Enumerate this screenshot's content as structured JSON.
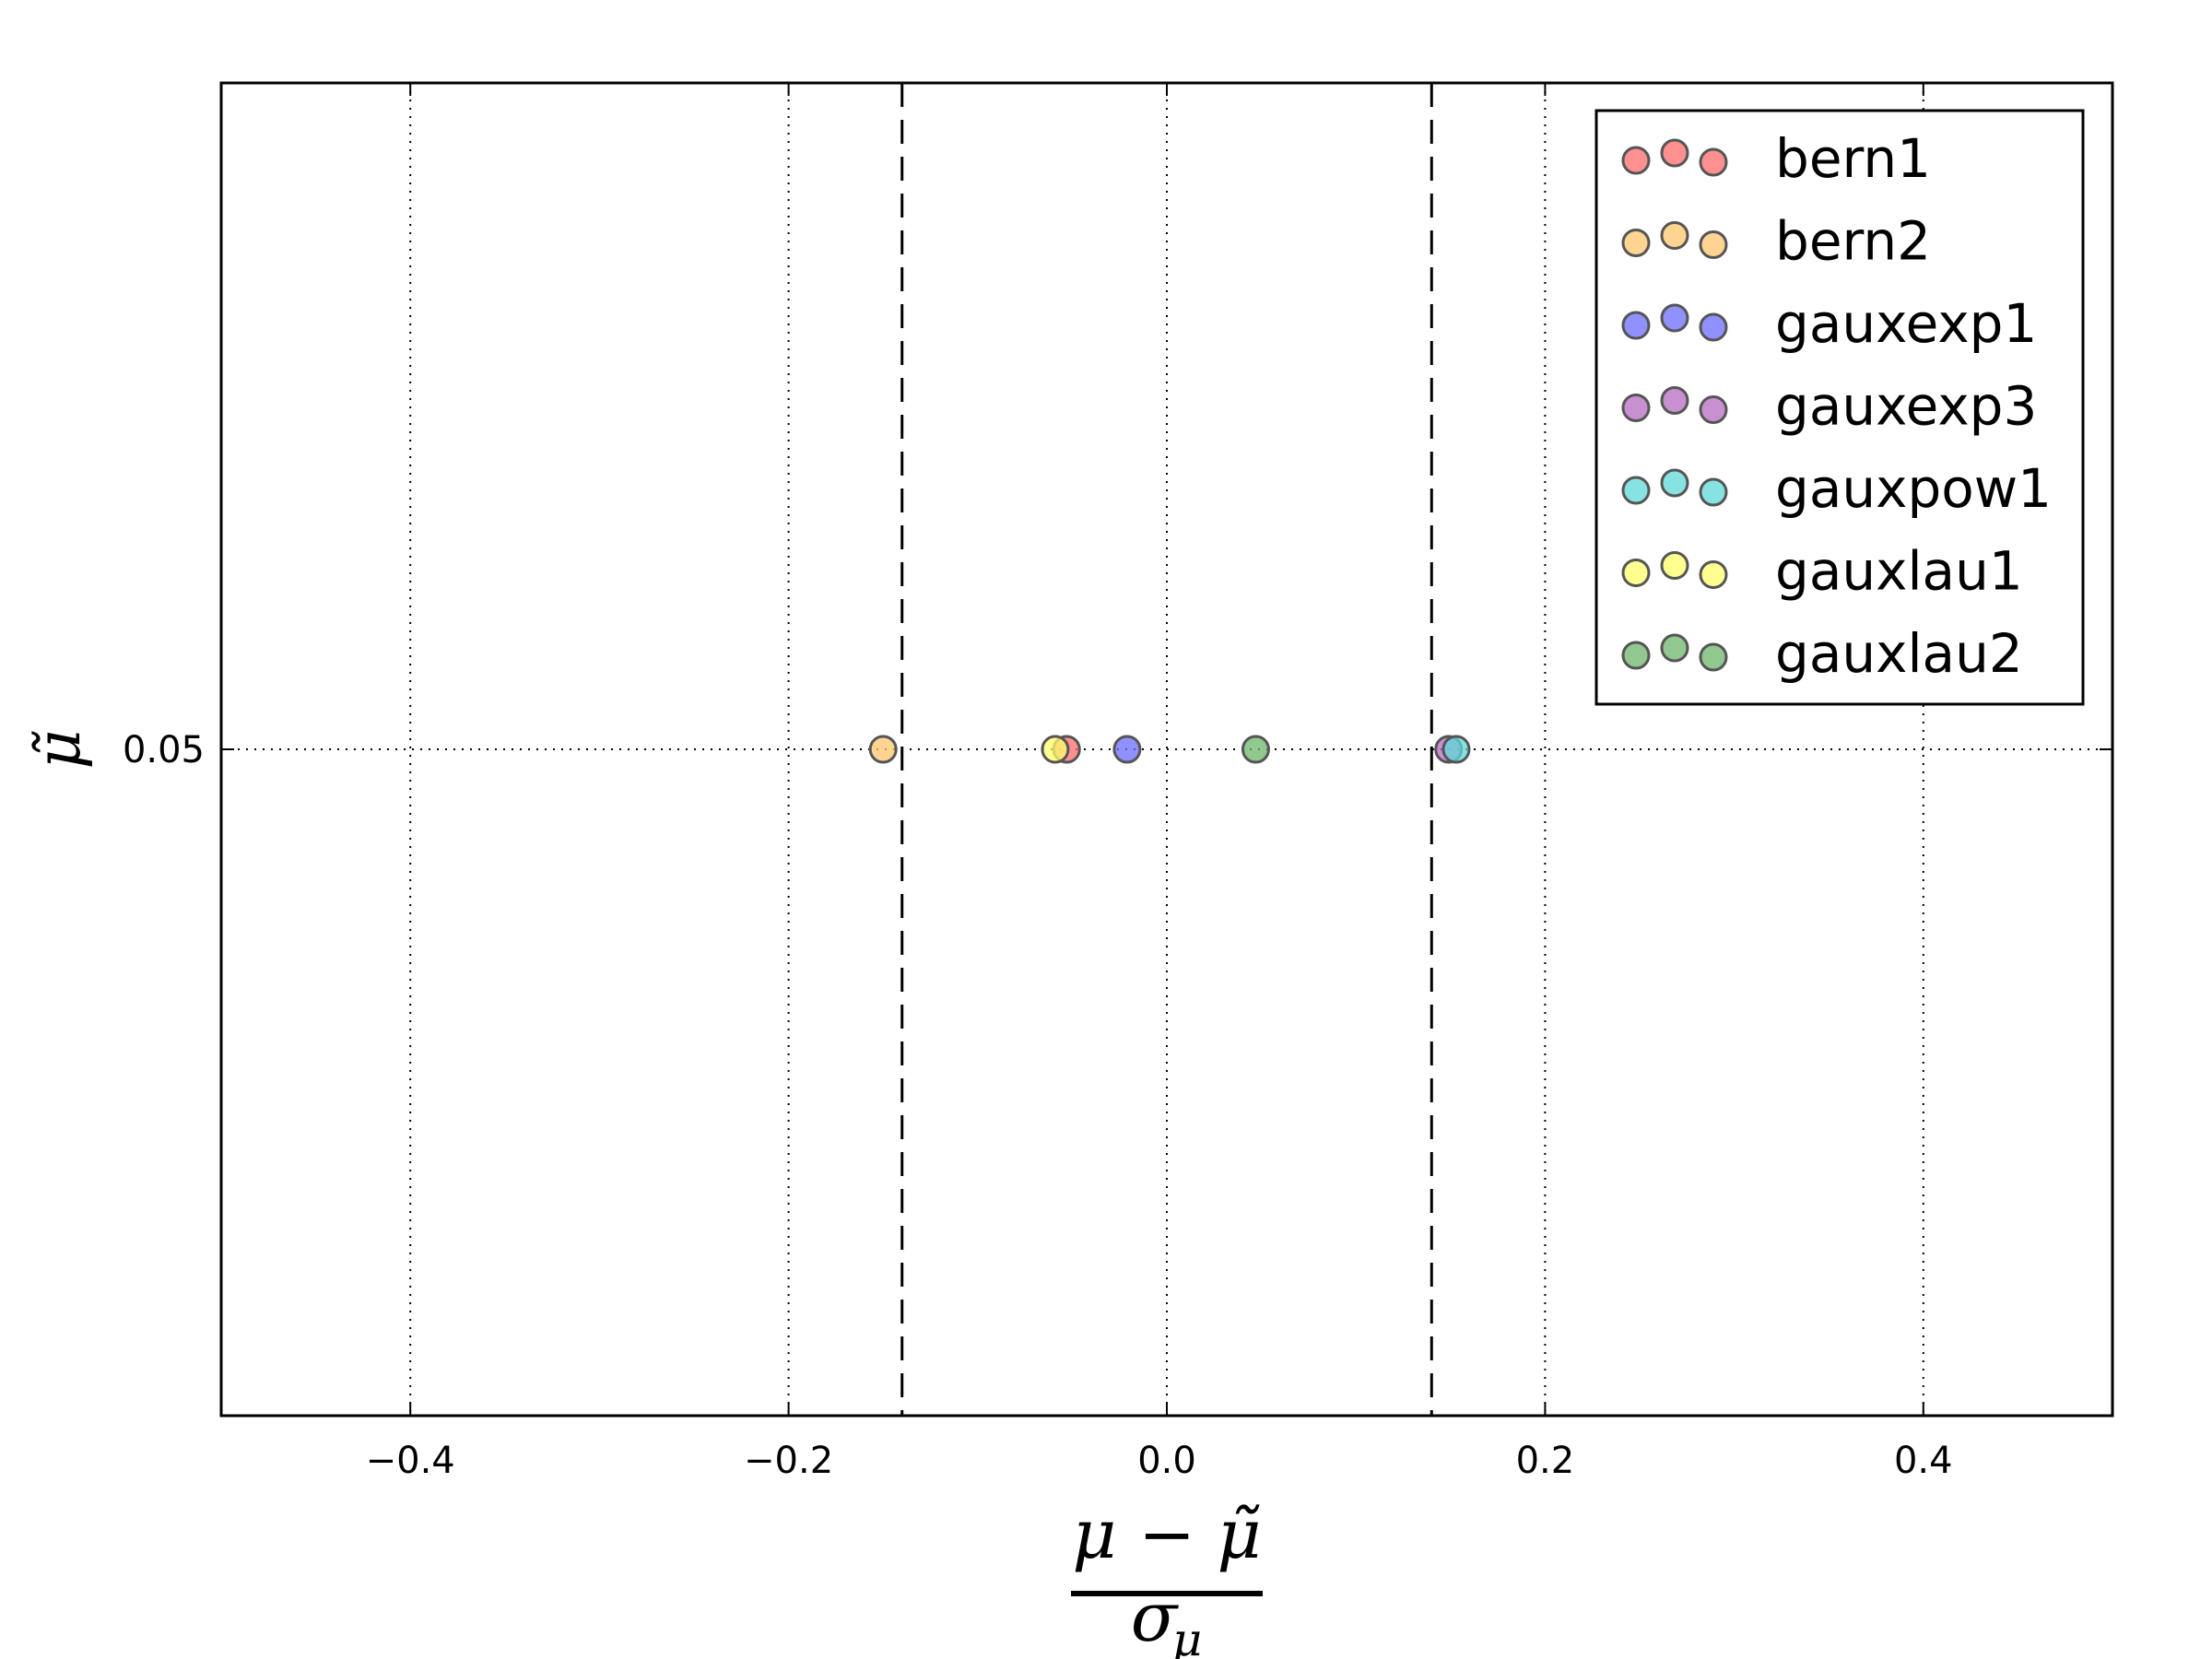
{
  "chart_data": {
    "type": "scatter",
    "title": "",
    "xlabel": {
      "numerator": "μ − μ̃",
      "denominator": "σ",
      "denominator_subscript": "μ"
    },
    "ylabel": "μ̃",
    "xlim": [
      -0.5,
      0.5
    ],
    "ylim": [
      0.0475,
      0.0525
    ],
    "x_ticks": [
      -0.4,
      -0.2,
      0.0,
      0.2,
      0.4
    ],
    "x_tick_labels": [
      "−0.4",
      "−0.2",
      "0.0",
      "0.2",
      "0.4"
    ],
    "y_ticks": [
      0.05
    ],
    "y_tick_labels": [
      "0.05"
    ],
    "grid": true,
    "reference_lines_x": [
      -0.14,
      0.14
    ],
    "legend_position": "top-right",
    "series": [
      {
        "name": "bern1",
        "color": "#ff6b6b",
        "points": [
          {
            "x": -0.053,
            "y": 0.05
          }
        ]
      },
      {
        "name": "bern2",
        "color": "#ffc56b",
        "points": [
          {
            "x": -0.15,
            "y": 0.05
          }
        ]
      },
      {
        "name": "gauxexp1",
        "color": "#6b6bff",
        "points": [
          {
            "x": -0.021,
            "y": 0.05
          }
        ]
      },
      {
        "name": "gauxexp3",
        "color": "#b56bc0",
        "points": [
          {
            "x": 0.149,
            "y": 0.05
          }
        ]
      },
      {
        "name": "gauxpow1",
        "color": "#5fd8d8",
        "points": [
          {
            "x": 0.153,
            "y": 0.05
          }
        ]
      },
      {
        "name": "gauxlau1",
        "color": "#ffff6b",
        "points": [
          {
            "x": -0.059,
            "y": 0.05
          }
        ]
      },
      {
        "name": "gauxlau2",
        "color": "#6bb56b",
        "points": [
          {
            "x": 0.047,
            "y": 0.05
          }
        ]
      }
    ]
  }
}
